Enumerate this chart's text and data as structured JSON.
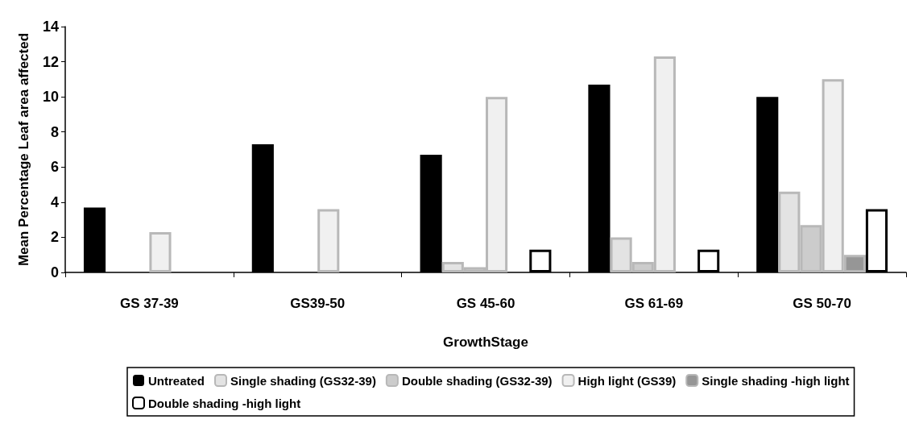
{
  "chart_data": {
    "type": "bar",
    "xlabel": "GrowthStage",
    "ylabel": "Mean Percentage Leaf area affected",
    "categories": [
      "GS 37-39",
      "GS39-50",
      "GS 45-60",
      "GS 61-69",
      "GS 50-70"
    ],
    "series": [
      {
        "name": "Untreated",
        "color": "#000000",
        "values": [
          3.7,
          7.3,
          6.7,
          10.7,
          10.0
        ]
      },
      {
        "name": "Single shading (GS32-39)",
        "color": "#e3e3e3",
        "values": [
          null,
          null,
          0.6,
          2.0,
          4.6
        ]
      },
      {
        "name": "Double shading (GS32-39)",
        "color": "#cccccc",
        "values": [
          null,
          null,
          0.3,
          0.6,
          2.7
        ]
      },
      {
        "name": "High light (GS39)",
        "color": "#f0f0f0",
        "values": [
          2.3,
          3.6,
          10.0,
          12.3,
          11.0
        ]
      },
      {
        "name": "Single shading -high light",
        "color": "#969696",
        "values": [
          null,
          null,
          null,
          null,
          1.0
        ]
      },
      {
        "name": "Double shading -high light",
        "color": "#ffffff",
        "values": [
          null,
          null,
          1.3,
          1.3,
          3.6
        ]
      }
    ],
    "ylim": [
      0,
      14
    ],
    "yticks": [
      0,
      2,
      4,
      6,
      8,
      10,
      12,
      14
    ],
    "grid": false,
    "legend": "bottom"
  }
}
